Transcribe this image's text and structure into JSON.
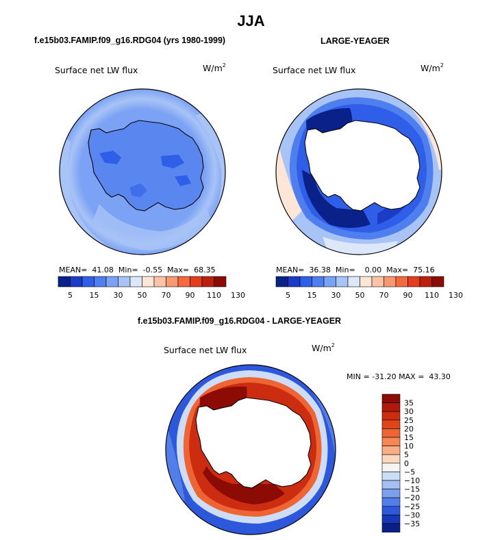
{
  "page": {
    "title": "JJA",
    "subtitle_left": "f.e15b03.FAMIP.f09_g16.RDG04 (yrs 1980-1999)",
    "subtitle_right": "LARGE-YEAGER",
    "subtitle_diff": "f.e15b03.FAMIP.f09_g16.RDG04 - LARGE-YEAGER"
  },
  "chart_data": [
    {
      "type": "heatmap",
      "projection": "south-polar-stereographic",
      "title": "f.e15b03.FAMIP.f09_g16.RDG04 (yrs 1980-1999)",
      "variable": "Surface net LW flux",
      "units": "W/m",
      "units_exp": "2",
      "stats": {
        "mean_label": "MEAN=",
        "mean": "41.08",
        "min_label": "Min=",
        "min": "-0.55",
        "max_label": "Max=",
        "max": "68.35"
      },
      "colorbar": {
        "levels": [
          5,
          15,
          30,
          50,
          70,
          90,
          110,
          130
        ],
        "tick_labels": [
          "5",
          "15",
          "30",
          "50",
          "70",
          "90",
          "110",
          "130"
        ],
        "colors": [
          "#0a2189",
          "#1a3cc6",
          "#2f5fe8",
          "#4f7fef",
          "#7ba2f4",
          "#a8c3f6",
          "#dce8fa",
          "#fde6d6",
          "#fbc3a6",
          "#f89870",
          "#f26a3e",
          "#e23d1c",
          "#bb1f0d",
          "#8c0b05"
        ]
      },
      "field_summary": {
        "ocean": "light-blue (~40-55)",
        "antarctic_interior": "blue (~30-50)",
        "coastal_patches": "darker blue (~20-30)"
      }
    },
    {
      "type": "heatmap",
      "projection": "south-polar-stereographic",
      "title": "LARGE-YEAGER",
      "variable": "Surface net LW flux",
      "units": "W/m",
      "units_exp": "2",
      "stats": {
        "mean_label": "MEAN=",
        "mean": "36.38",
        "min_label": "Min=",
        "min": "0.00",
        "max_label": "Max=",
        "max": "75.16"
      },
      "colorbar": {
        "levels": [
          5,
          15,
          30,
          50,
          70,
          90,
          110,
          130
        ],
        "tick_labels": [
          "5",
          "15",
          "30",
          "50",
          "70",
          "90",
          "110",
          "130"
        ],
        "colors": [
          "#0a2189",
          "#1a3cc6",
          "#2f5fe8",
          "#4f7fef",
          "#7ba2f4",
          "#a8c3f6",
          "#dce8fa",
          "#fde6d6",
          "#fbc3a6",
          "#f89870",
          "#f26a3e",
          "#e23d1c",
          "#bb1f0d",
          "#8c0b05"
        ]
      },
      "field_summary": {
        "sea_ice_ring": "dark blue (<15)",
        "open_ocean": "light-blue/pale (~50-70)",
        "antarctica": "no data (white)"
      }
    },
    {
      "type": "heatmap",
      "projection": "south-polar-stereographic",
      "title": "f.e15b03.FAMIP.f09_g16.RDG04 - LARGE-YEAGER",
      "variable": "Surface net LW flux",
      "units": "W/m",
      "units_exp": "2",
      "stats": {
        "min_label": "MIN =",
        "min": "-31.20",
        "max_label": "MAX =",
        "max": "43.30"
      },
      "colorbar": {
        "levels": [
          35,
          30,
          25,
          20,
          15,
          10,
          5,
          0,
          -5,
          -10,
          -15,
          -20,
          -25,
          -30,
          -35
        ],
        "tick_labels": [
          "35",
          "30",
          "25",
          "20",
          "15",
          "10",
          "5",
          "0",
          "−5",
          "−10",
          "−15",
          "−20",
          "−25",
          "−30",
          "−35"
        ],
        "colors": [
          "#8c0b05",
          "#b01a0a",
          "#cc2c10",
          "#e04419",
          "#ee6433",
          "#f58755",
          "#f9ae85",
          "#fcd7c0",
          "#f4f4f4",
          "#cddcf7",
          "#a4bff2",
          "#7ba0ed",
          "#517ee8",
          "#2d58dc",
          "#1637b8",
          "#0a1f88"
        ]
      },
      "field_summary": {
        "sea_ice_ring": "red (+25 to +40)",
        "outer_ocean": "blue (-10 to -25)",
        "antarctica": "no data (white)"
      }
    }
  ]
}
